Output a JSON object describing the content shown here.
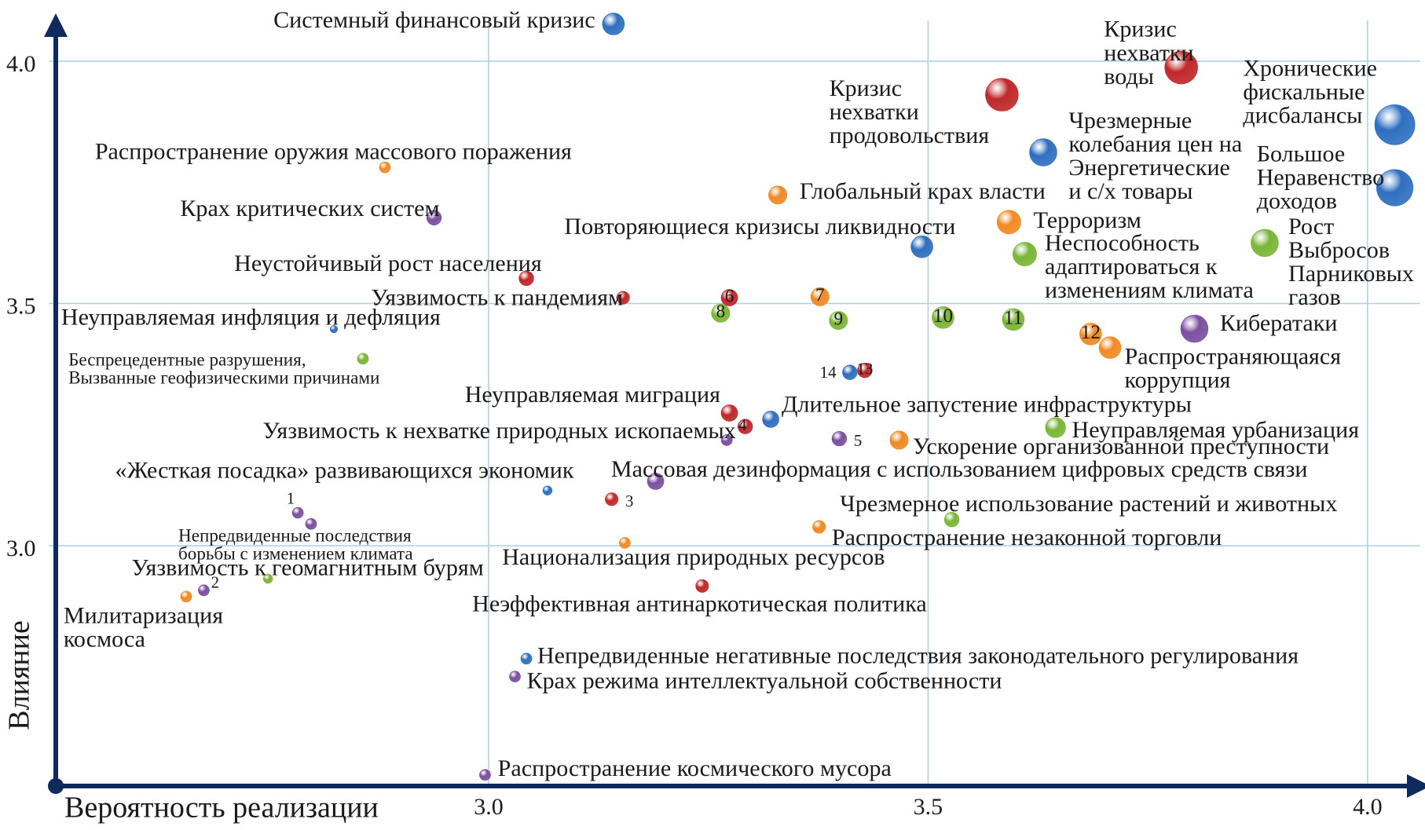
{
  "chart_data": {
    "type": "scatter",
    "x_label": "Вероятность реализации",
    "y_label": "Влияние",
    "xlim": [
      2.5,
      4.06
    ],
    "ylim": [
      2.5,
      4.1
    ],
    "xticks": [
      {
        "value": 3,
        "label": "3.0"
      },
      {
        "value": 3.5,
        "label": "3.5"
      },
      {
        "value": 4,
        "label": "4.0"
      }
    ],
    "yticks": [
      {
        "value": 3,
        "label": "3.0"
      },
      {
        "value": 3.5,
        "label": "3.5"
      },
      {
        "value": 4,
        "label": "4.0"
      }
    ],
    "grid": true,
    "points": [
      {
        "label": "Системный финансовый кризис",
        "x": 3.142,
        "y": 4.077,
        "size": 12,
        "color": "#2f6fc0"
      },
      {
        "label": "Кризис\nнехватки\nводы",
        "x": 3.788,
        "y": 3.987,
        "size": 18,
        "color": "#c0282a"
      },
      {
        "label": "Хронические\nфискальные\nдисбалансы",
        "x": 4.031,
        "y": 3.869,
        "size": 22,
        "color": "#2f6fc0"
      },
      {
        "label": "Кризис\nнехватки\nпродовольствия",
        "x": 3.584,
        "y": 3.931,
        "size": 18,
        "color": "#c0282a"
      },
      {
        "label": "Чрезмерные\nколебания цен на\nЭнергетические\nи с/х товары",
        "x": 3.631,
        "y": 3.812,
        "size": 15,
        "color": "#2f6fc0"
      },
      {
        "label": "Большое\nНеравенство\nдоходов",
        "x": 4.031,
        "y": 3.739,
        "size": 20,
        "color": "#2f6fc0"
      },
      {
        "label": "Распространение оружия массового поражения",
        "x": 2.882,
        "y": 3.781,
        "size": 6,
        "color": "#f08a24"
      },
      {
        "label": "Глобальный крах власти",
        "x": 3.329,
        "y": 3.724,
        "size": 10,
        "color": "#f08a24"
      },
      {
        "label": "Терроризм",
        "x": 3.592,
        "y": 3.668,
        "size": 13,
        "color": "#f08a24"
      },
      {
        "label": "Крах критических систем",
        "x": 2.938,
        "y": 3.677,
        "size": 8,
        "color": "#7a4fa0"
      },
      {
        "label": "Повторяющиеся кризисы ликвидности",
        "x": 3.493,
        "y": 3.617,
        "size": 12,
        "color": "#2f6fc0"
      },
      {
        "label": "Неспособность\nадаптироваться к\nизменениям климата",
        "x": 3.61,
        "y": 3.602,
        "size": 13,
        "color": "#7ab537"
      },
      {
        "label": "Рост\nВыбросов\nПарниковых\nгазов",
        "x": 3.883,
        "y": 3.625,
        "size": 15,
        "color": "#7ab537"
      },
      {
        "label": "Неустойчивый рост населения",
        "x": 3.043,
        "y": 3.552,
        "size": 8,
        "color": "#c0282a"
      },
      {
        "label": "Уязвимость к пандемиям",
        "x": 3.153,
        "y": 3.512,
        "size": 7,
        "color": "#c0282a"
      },
      {
        "label": "Неуправляемая инфляция и дефляция",
        "x": 2.824,
        "y": 3.447,
        "size": 4,
        "color": "#2f6fc0"
      },
      {
        "label": "Кибератаки",
        "x": 3.803,
        "y": 3.448,
        "size": 15,
        "color": "#7a4fa0"
      },
      {
        "label": "6",
        "x": 3.274,
        "y": 3.512,
        "size": 9,
        "color": "#c0282a"
      },
      {
        "label": "7",
        "x": 3.377,
        "y": 3.514,
        "size": 10,
        "color": "#f08a24"
      },
      {
        "label": "8",
        "x": 3.264,
        "y": 3.48,
        "size": 10,
        "color": "#7ab537"
      },
      {
        "label": "9",
        "x": 3.398,
        "y": 3.465,
        "size": 10,
        "color": "#7ab537"
      },
      {
        "label": "10",
        "x": 3.517,
        "y": 3.471,
        "size": 12,
        "color": "#7ab537"
      },
      {
        "label": "11",
        "x": 3.597,
        "y": 3.467,
        "size": 12,
        "color": "#7ab537"
      },
      {
        "label": "12",
        "x": 3.685,
        "y": 3.437,
        "size": 12,
        "color": "#f08a24"
      },
      {
        "label": "Распространяющаяся\nкоррупция",
        "x": 3.707,
        "y": 3.409,
        "size": 12,
        "color": "#f08a24"
      },
      {
        "label": "Беспрецедентные разрушения,\nВызванные геофизическими причинами",
        "x": 2.857,
        "y": 3.386,
        "size": 6,
        "color": "#7ab537"
      },
      {
        "label": "14",
        "x": 3.411,
        "y": 3.358,
        "size": 8,
        "color": "#2f6fc0"
      },
      {
        "label": "13",
        "x": 3.428,
        "y": 3.362,
        "size": 8,
        "color": "#c0282a"
      },
      {
        "label": "Неуправляемая миграция",
        "x": 3.274,
        "y": 3.274,
        "size": 9,
        "color": "#c0282a"
      },
      {
        "label": "4",
        "x": 3.292,
        "y": 3.246,
        "size": 8,
        "color": "#c0282a"
      },
      {
        "label": "Длительное запустение инфраструктуры",
        "x": 3.321,
        "y": 3.261,
        "size": 9,
        "color": "#2f6fc0"
      },
      {
        "label": "Уязвимость к нехватке природных ископаемых",
        "x": 3.271,
        "y": 3.218,
        "size": 6,
        "color": "#7a4fa0"
      },
      {
        "label": "5",
        "x": 3.399,
        "y": 3.221,
        "size": 8,
        "color": "#7a4fa0"
      },
      {
        "label": "Ускорение организованной преступности",
        "x": 3.467,
        "y": 3.218,
        "size": 10,
        "color": "#f08a24"
      },
      {
        "label": "Неуправляемая урбанизация",
        "x": 3.645,
        "y": 3.244,
        "size": 11,
        "color": "#7ab537"
      },
      {
        "label": "«Жесткая посадка» развивающихся экономик",
        "x": 3.067,
        "y": 3.114,
        "size": 5,
        "color": "#2f6fc0"
      },
      {
        "label": "Массовая дезинформация с использованием цифровых средств связи",
        "x": 3.19,
        "y": 3.133,
        "size": 9,
        "color": "#7a4fa0"
      },
      {
        "label": "3",
        "x": 3.14,
        "y": 3.096,
        "size": 7,
        "color": "#c0282a"
      },
      {
        "label": "1",
        "x": 2.783,
        "y": 3.068,
        "size": 6,
        "color": "#7a4fa0"
      },
      {
        "label": "Непредвиденные последствия\nборьбы с изменением климата",
        "x": 2.798,
        "y": 3.045,
        "size": 6,
        "color": "#7a4fa0"
      },
      {
        "label": "Чрезмерное использование растений и животных",
        "x": 3.527,
        "y": 3.054,
        "size": 8,
        "color": "#7ab537"
      },
      {
        "label": "Распространение незаконной торговли",
        "x": 3.376,
        "y": 3.039,
        "size": 7,
        "color": "#f08a24"
      },
      {
        "label": "Национализация природных ресурсов",
        "x": 3.155,
        "y": 3.006,
        "size": 6,
        "color": "#f08a24"
      },
      {
        "label": "Уязвимость к геомагнитным бурям",
        "x": 2.749,
        "y": 2.932,
        "size": 5,
        "color": "#7ab537"
      },
      {
        "label": "2",
        "x": 2.676,
        "y": 2.908,
        "size": 6,
        "color": "#7a4fa0"
      },
      {
        "label": "Милитаризация\nкосмоса",
        "x": 2.656,
        "y": 2.895,
        "size": 6,
        "color": "#f08a24"
      },
      {
        "label": "Неэффективная антинаркотическая политика",
        "x": 3.243,
        "y": 2.917,
        "size": 7,
        "color": "#c0282a"
      },
      {
        "label": "Непредвиденные негативные последствия законодательного регулирования",
        "x": 3.043,
        "y": 2.767,
        "size": 6,
        "color": "#2f6fc0"
      },
      {
        "label": "Крах режима интеллектуальной собственности",
        "x": 3.03,
        "y": 2.73,
        "size": 6,
        "color": "#7a4fa0"
      },
      {
        "label": "Распространение космического мусора",
        "x": 2.996,
        "y": 2.527,
        "size": 6,
        "color": "#7a4fa0"
      }
    ]
  }
}
